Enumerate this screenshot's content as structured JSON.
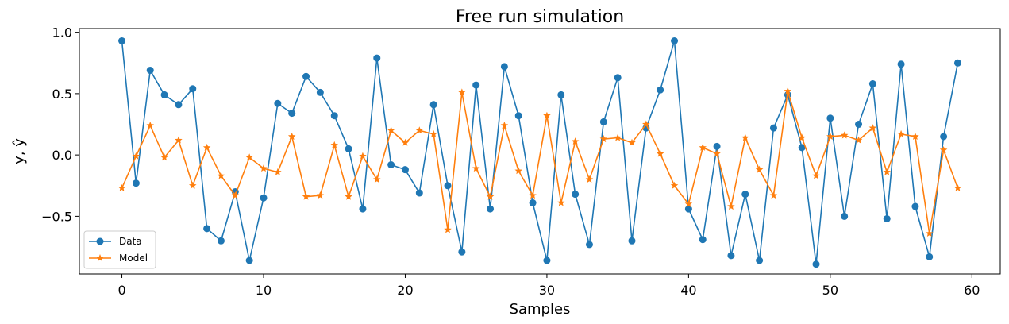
{
  "chart_data": {
    "type": "line",
    "title": "Free run simulation",
    "xlabel": "Samples",
    "ylabel": "y, ŷ",
    "xlim": [
      -3,
      62
    ],
    "ylim": [
      -0.97,
      1.03
    ],
    "xticks": [
      0,
      10,
      20,
      30,
      40,
      50,
      60
    ],
    "xtick_labels": [
      "0",
      "10",
      "20",
      "30",
      "40",
      "50",
      "60"
    ],
    "yticks": [
      -0.5,
      0.0,
      0.5,
      1.0
    ],
    "ytick_labels": [
      "−0.5",
      "0.0",
      "0.5",
      "1.0"
    ],
    "grid": false,
    "legend_position": "lower-left",
    "x": [
      0,
      1,
      2,
      3,
      4,
      5,
      6,
      7,
      8,
      9,
      10,
      11,
      12,
      13,
      14,
      15,
      16,
      17,
      18,
      19,
      20,
      21,
      22,
      23,
      24,
      25,
      26,
      27,
      28,
      29,
      30,
      31,
      32,
      33,
      34,
      35,
      36,
      37,
      38,
      39,
      40,
      41,
      42,
      43,
      44,
      45,
      46,
      47,
      48,
      49,
      50,
      51,
      52,
      53,
      54,
      55,
      56,
      57,
      58,
      59
    ],
    "series": [
      {
        "name": "Data",
        "color": "#1f77b4",
        "marker": "circle",
        "values": [
          0.93,
          -0.23,
          0.69,
          0.49,
          0.41,
          0.54,
          -0.6,
          -0.7,
          -0.3,
          -0.86,
          -0.35,
          0.42,
          0.34,
          0.64,
          0.51,
          0.32,
          0.05,
          -0.44,
          0.79,
          -0.08,
          -0.12,
          -0.31,
          0.41,
          -0.25,
          -0.79,
          0.57,
          -0.44,
          0.72,
          0.32,
          -0.39,
          -0.86,
          0.49,
          -0.32,
          -0.73,
          0.27,
          0.63,
          -0.7,
          0.22,
          0.53,
          0.93,
          -0.44,
          -0.69,
          0.07,
          -0.82,
          -0.32,
          -0.86,
          0.22,
          0.49,
          0.06,
          -0.89,
          0.3,
          -0.5,
          0.25,
          0.58,
          -0.52,
          0.74,
          -0.42,
          -0.83,
          0.15,
          0.75
        ]
      },
      {
        "name": "Model",
        "color": "#ff7f0e",
        "marker": "star",
        "values": [
          -0.27,
          -0.01,
          0.24,
          -0.02,
          0.12,
          -0.25,
          0.06,
          -0.17,
          -0.33,
          -0.02,
          -0.11,
          -0.14,
          0.15,
          -0.34,
          -0.33,
          0.08,
          -0.34,
          -0.01,
          -0.2,
          0.2,
          0.1,
          0.2,
          0.17,
          -0.61,
          0.51,
          -0.11,
          -0.34,
          0.24,
          -0.13,
          -0.33,
          0.32,
          -0.39,
          0.11,
          -0.2,
          0.13,
          0.14,
          0.1,
          0.25,
          0.01,
          -0.25,
          -0.4,
          0.06,
          0.01,
          -0.42,
          0.14,
          -0.12,
          -0.33,
          0.52,
          0.14,
          -0.17,
          0.15,
          0.16,
          0.12,
          0.22,
          -0.14,
          0.17,
          0.15,
          -0.64,
          0.04,
          -0.27
        ]
      }
    ]
  }
}
